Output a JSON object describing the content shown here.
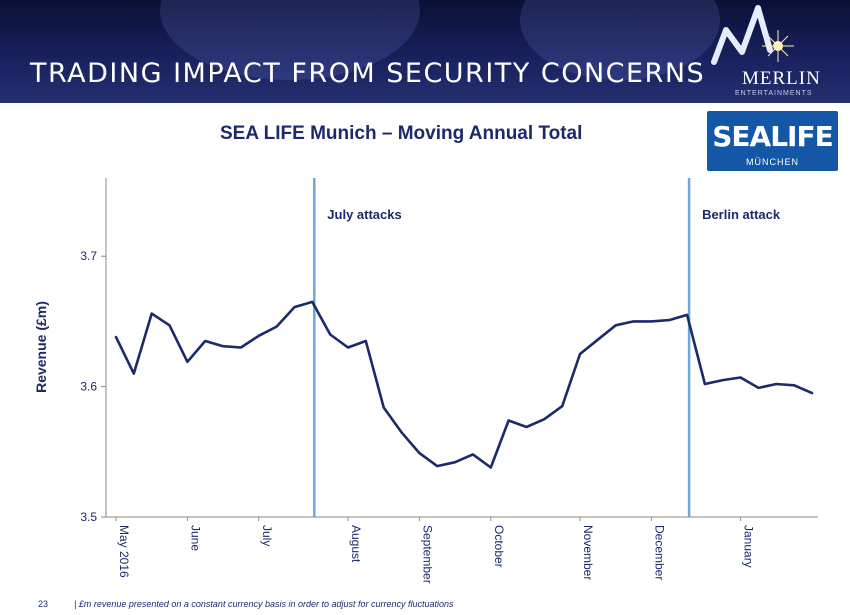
{
  "slide": {
    "title": "TRADING IMPACT FROM SECURITY CONCERNS",
    "page_number": "23",
    "footnote": "£m revenue presented on a constant currency basis in order to adjust for currency fluctuations"
  },
  "logos": {
    "merlin": "MERLIN",
    "merlin_sub": "ENTERTAINMENTS",
    "sealife": "SEALIFE",
    "sealife_city": "MÜNCHEN"
  },
  "colors": {
    "line": "#1c2a6b",
    "marker": "#6ea8d8",
    "axis": "#8a8a8a",
    "text": "#1c2a6b"
  },
  "chart_data": {
    "type": "line",
    "title": "SEA LIFE Munich – Moving Annual Total",
    "ylabel": "Revenue (£m)",
    "xlabel": "",
    "ylim": [
      3.5,
      3.76
    ],
    "yticks": [
      3.5,
      3.6,
      3.7
    ],
    "grid": false,
    "x_count": 40,
    "x_tick_labels": [
      {
        "i": 0,
        "label": "May 2016"
      },
      {
        "i": 4,
        "label": "June"
      },
      {
        "i": 8,
        "label": "July"
      },
      {
        "i": 13,
        "label": "August"
      },
      {
        "i": 17,
        "label": "September"
      },
      {
        "i": 21,
        "label": "October"
      },
      {
        "i": 26,
        "label": "November"
      },
      {
        "i": 30,
        "label": "December"
      },
      {
        "i": 35,
        "label": "January"
      }
    ],
    "series": [
      {
        "values": [
          3.638,
          3.61,
          3.656,
          3.647,
          3.619,
          3.635,
          3.631,
          3.63,
          3.639,
          3.646,
          3.661,
          3.665,
          3.64,
          3.63,
          3.635,
          3.584,
          3.565,
          3.549,
          3.539,
          3.542,
          3.548,
          3.538,
          3.574,
          3.569,
          3.575,
          3.585,
          3.625,
          3.636,
          3.647,
          3.65,
          3.65,
          3.651,
          3.655,
          3.602,
          3.605,
          3.607,
          3.599,
          3.602,
          3.601,
          3.595
        ]
      }
    ],
    "annotations": [
      {
        "label": "July attacks",
        "x_index": 11
      },
      {
        "label": "Berlin attack",
        "x_index": 32
      }
    ]
  }
}
